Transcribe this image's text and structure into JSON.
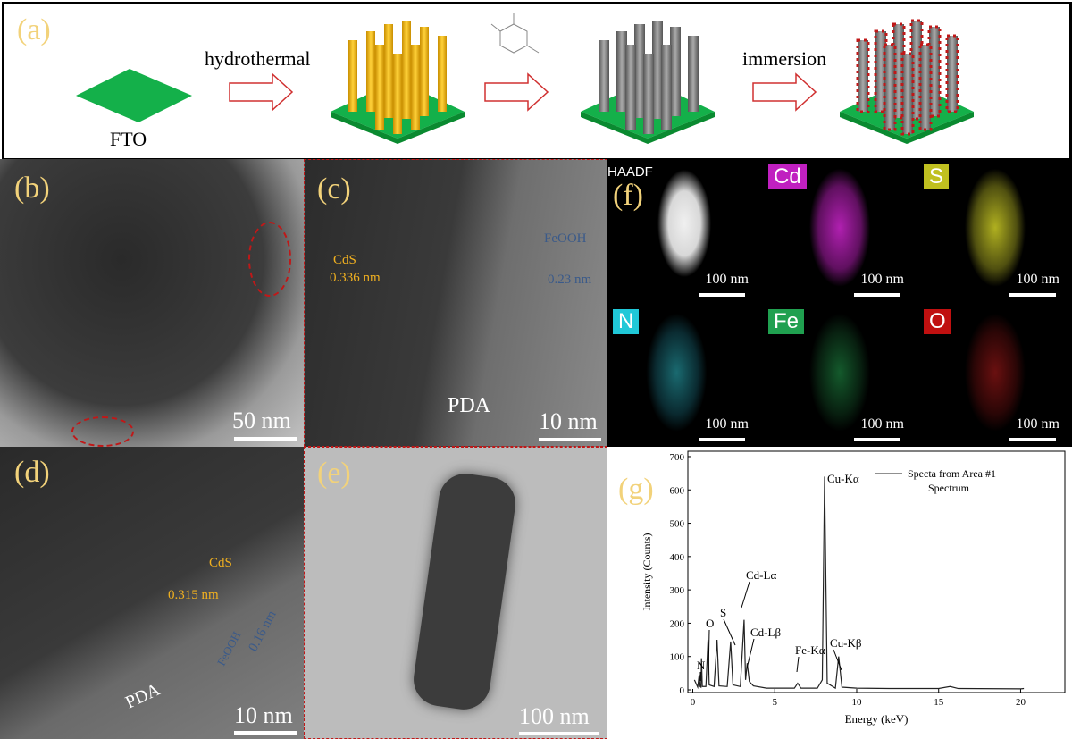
{
  "panel_a": {
    "label": "(a)",
    "substrate": "FTO",
    "step_1": "hydrothermal",
    "step_2": "immersion"
  },
  "panel_b": {
    "label": "(b)",
    "scale": "50 nm"
  },
  "panel_c": {
    "label": "(c)",
    "phase_1": "CdS",
    "spacing_1": "0.336 nm",
    "phase_2": "FeOOH",
    "spacing_2": "0.23 nm",
    "layer": "PDA",
    "scale": "10 nm"
  },
  "panel_d": {
    "label": "(d)",
    "phase_1": "CdS",
    "spacing_1": "0.315 nm",
    "phase_2": "FeOOH",
    "spacing_2": "0.16 nm",
    "layer": "PDA",
    "scale": "10 nm"
  },
  "panel_e": {
    "label": "(e)",
    "scale": "100 nm"
  },
  "panel_f": {
    "label": "(f)",
    "maps": [
      {
        "name": "HAADF",
        "scale": "100 nm"
      },
      {
        "name": "Cd",
        "scale": "100 nm"
      },
      {
        "name": "S",
        "scale": "100 nm"
      },
      {
        "name": "N",
        "scale": "100 nm"
      },
      {
        "name": "Fe",
        "scale": "100 nm"
      },
      {
        "name": "O",
        "scale": "100 nm"
      }
    ]
  },
  "chart_data": {
    "type": "line",
    "label": "(g)",
    "x_label": "Energy (keV)",
    "y_label": "Intensity (Counts)",
    "x": [
      0.1,
      0.3,
      0.39,
      0.45,
      0.5,
      0.53,
      0.58,
      0.8,
      0.93,
      1.0,
      1.3,
      1.48,
      1.6,
      2.1,
      2.31,
      2.45,
      2.9,
      3.13,
      3.22,
      3.32,
      3.45,
      3.7,
      4.5,
      6.2,
      6.4,
      6.6,
      7.6,
      7.9,
      8.04,
      8.2,
      8.7,
      8.9,
      9.1,
      10,
      12,
      15,
      15.7,
      16.2,
      20,
      20.2
    ],
    "series": [
      {
        "name": "Specta from Area #1",
        "color": "#222222",
        "values": [
          30,
          8,
          45,
          10,
          8,
          95,
          10,
          10,
          150,
          15,
          10,
          150,
          12,
          10,
          145,
          15,
          10,
          210,
          30,
          80,
          25,
          12,
          5,
          5,
          20,
          5,
          5,
          30,
          640,
          20,
          5,
          100,
          8,
          5,
          4,
          4,
          10,
          4,
          3,
          4
        ]
      }
    ],
    "legend_note": "Spectrum",
    "annotations": [
      "N",
      "O",
      "S",
      "Cd-Lα",
      "Cd-Lβ",
      "Fe-Kα",
      "Cu-Kα",
      "Cu-Kβ"
    ],
    "xlim": [
      -0.3,
      22.7
    ],
    "ylim": [
      -8,
      716
    ],
    "xticks": [
      0,
      5,
      10,
      15,
      20
    ],
    "yticks": [
      0,
      100,
      200,
      300,
      400,
      500,
      600,
      700
    ]
  }
}
